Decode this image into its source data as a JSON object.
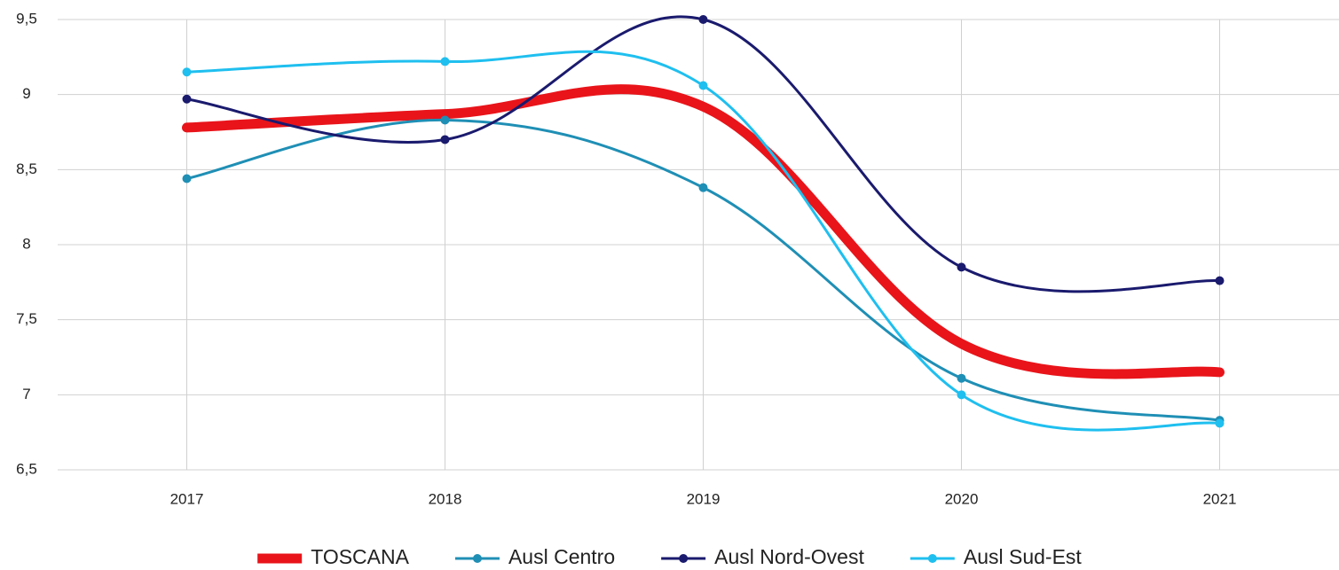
{
  "chart_data": {
    "type": "line",
    "categories": [
      "2017",
      "2018",
      "2019",
      "2020",
      "2021"
    ],
    "series": [
      {
        "name": "TOSCANA",
        "color": "#e8141a",
        "values": [
          8.78,
          8.87,
          8.92,
          7.34,
          7.15
        ]
      },
      {
        "name": "Ausl Centro",
        "color": "#1f8fb5",
        "values": [
          8.44,
          8.83,
          8.38,
          7.11,
          6.83
        ]
      },
      {
        "name": "Ausl Nord-Ovest",
        "color": "#1a1a6e",
        "values": [
          8.97,
          8.7,
          9.5,
          7.85,
          7.76
        ]
      },
      {
        "name": "Ausl Sud-Est",
        "color": "#1fbfef",
        "values": [
          9.15,
          9.22,
          9.06,
          7.0,
          6.81
        ]
      }
    ],
    "ylim": [
      6.5,
      9.5
    ],
    "yticks": [
      {
        "value": 6.5,
        "label": "6,5"
      },
      7,
      {
        "value": 7.5,
        "label": "7,5"
      },
      8,
      {
        "value": 8.5,
        "label": "8,5"
      },
      9,
      {
        "value": 9.5,
        "label": "9,5"
      }
    ],
    "grid": true,
    "legend": "bottom"
  }
}
